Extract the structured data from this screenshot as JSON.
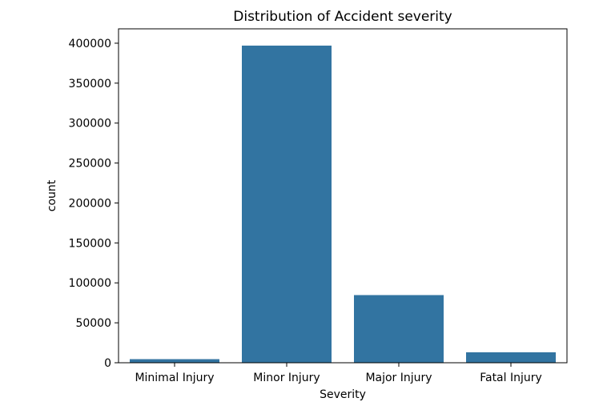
{
  "chart_data": {
    "type": "bar",
    "title": "Distribution of Accident severity",
    "xlabel": "Severity",
    "ylabel": "count",
    "categories": [
      "Minimal Injury",
      "Minor Injury",
      "Major Injury",
      "Fatal Injury"
    ],
    "values": [
      4500,
      397000,
      84700,
      13100
    ],
    "ylim": [
      0,
      418000
    ],
    "yticks": [
      0,
      50000,
      100000,
      150000,
      200000,
      250000,
      300000,
      350000,
      400000
    ],
    "ytick_labels": [
      "0",
      "50000",
      "100000",
      "150000",
      "200000",
      "250000",
      "300000",
      "350000",
      "400000"
    ],
    "grid": false,
    "bar_color": "#3274a1"
  }
}
